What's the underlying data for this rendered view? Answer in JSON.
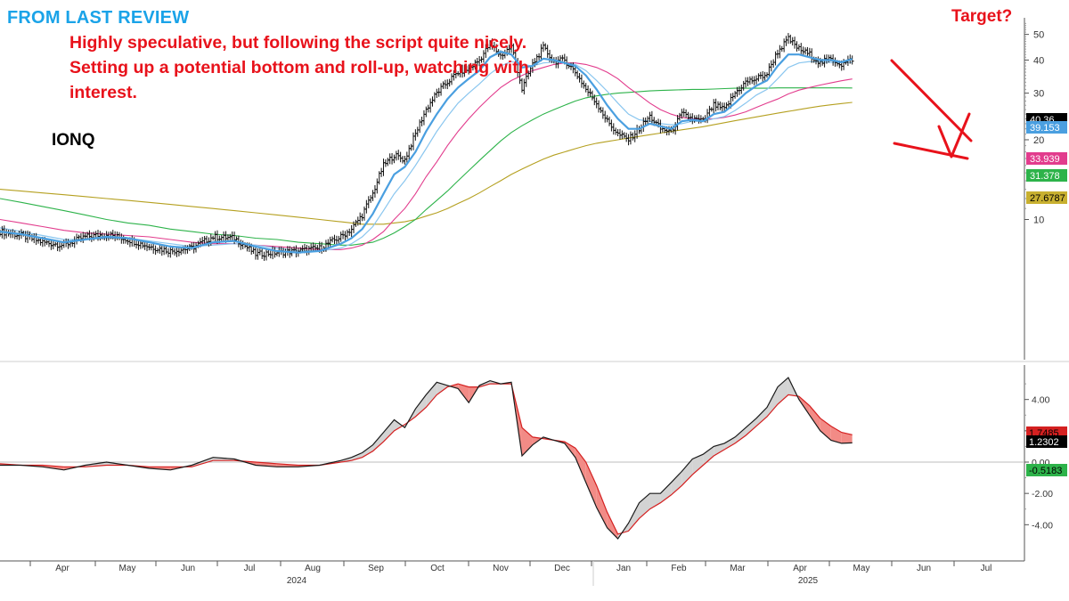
{
  "header": {
    "title": "FROM LAST REVIEW",
    "note": "Highly speculative, but following the script quite nicely. Setting up a potential bottom and roll-up, watching with interest.",
    "ticker": "IONQ",
    "target_label": "Target?"
  },
  "colors": {
    "title": "#1aa3e8",
    "note": "#e8121b",
    "ma_fast": "#4a9fe0",
    "ma_mid": "#8ac6ef",
    "ma_pink": "#e23c8d",
    "ma_green": "#2db34a",
    "ma_olive": "#b5a020",
    "osc_fast": "#1a1a1a",
    "osc_slow": "#d42020",
    "osc_fill_up": "#d3d3d3",
    "osc_fill_down": "#f28b86",
    "annotation": "#e8121b"
  },
  "chart_data": [
    {
      "type": "line",
      "name": "price",
      "title": "IONQ daily price with moving averages",
      "ylim": [
        3,
        56
      ],
      "yticks": [
        "10",
        "20",
        "30",
        "40",
        "50"
      ],
      "months": [
        "Apr",
        "May",
        "Jun",
        "Jul",
        "Aug",
        "Sep",
        "Oct",
        "Nov",
        "Dec",
        "Jan",
        "Feb",
        "Mar",
        "Apr",
        "May",
        "Jun",
        "Jul"
      ],
      "years": [
        "2024",
        "2025"
      ],
      "x": [
        0,
        10,
        20,
        30,
        40,
        50,
        60,
        70,
        80,
        90,
        100,
        110,
        120,
        130,
        140,
        150,
        160,
        165,
        170,
        175,
        180,
        185,
        190,
        195,
        200,
        205,
        210,
        215,
        220,
        225,
        230,
        235,
        240,
        245,
        250,
        255,
        260,
        265,
        270,
        275,
        280,
        285,
        290,
        295,
        300,
        305,
        310,
        315,
        320,
        325,
        330,
        335,
        340,
        345,
        350,
        355,
        360,
        365,
        370,
        375,
        380,
        385,
        390,
        395,
        400
      ],
      "close": [
        9.0,
        8.7,
        8.2,
        8.0,
        8.6,
        8.8,
        8.4,
        7.9,
        7.6,
        7.8,
        8.6,
        8.5,
        7.4,
        7.5,
        7.6,
        7.8,
        8.6,
        9.2,
        10.4,
        12.5,
        16.0,
        17.5,
        16.8,
        21.0,
        26.0,
        30.0,
        33.0,
        36.0,
        37.0,
        40.0,
        46.0,
        41.5,
        45.0,
        31.0,
        38.5,
        44.5,
        39.5,
        40.0,
        36.0,
        31.0,
        27.5,
        23.5,
        21.0,
        20.0,
        22.0,
        24.5,
        22.0,
        21.5,
        25.0,
        24.0,
        23.5,
        27.0,
        26.0,
        30.0,
        33.0,
        34.0,
        35.5,
        43.0,
        48.0,
        44.0,
        42.0,
        39.0,
        40.5,
        38.5,
        40.36
      ],
      "series": [
        {
          "name": "MA fast",
          "values": [
            9.0,
            8.8,
            8.5,
            8.2,
            8.4,
            8.6,
            8.5,
            8.2,
            7.9,
            7.8,
            8.2,
            8.3,
            7.9,
            7.6,
            7.5,
            7.6,
            8.1,
            8.5,
            9.2,
            10.5,
            12.5,
            14.8,
            15.8,
            18.0,
            21.5,
            25.0,
            28.5,
            31.5,
            34.0,
            36.5,
            41.0,
            43.0,
            42.0,
            37.5,
            38.0,
            40.5,
            40.0,
            39.0,
            38.0,
            35.0,
            31.0,
            27.0,
            24.0,
            22.0,
            22.0,
            23.0,
            22.5,
            22.0,
            23.5,
            23.8,
            23.5,
            25.0,
            25.5,
            27.5,
            30.0,
            32.0,
            33.5,
            38.0,
            42.0,
            42.0,
            41.0,
            40.0,
            40.0,
            39.3,
            40.36
          ]
        },
        {
          "name": "MA mid",
          "values": [
            9.3,
            9.0,
            8.7,
            8.4,
            8.4,
            8.5,
            8.5,
            8.3,
            8.1,
            7.9,
            8.0,
            8.1,
            8.0,
            7.8,
            7.6,
            7.6,
            7.8,
            8.1,
            8.6,
            9.4,
            10.8,
            12.5,
            14.0,
            16.0,
            18.5,
            21.5,
            24.5,
            27.5,
            30.0,
            32.5,
            35.5,
            38.0,
            39.5,
            38.5,
            38.0,
            39.0,
            39.3,
            39.0,
            38.5,
            36.5,
            33.5,
            30.5,
            27.5,
            25.0,
            23.8,
            23.5,
            23.0,
            22.8,
            23.0,
            23.5,
            23.5,
            24.0,
            24.5,
            25.8,
            27.5,
            29.5,
            31.0,
            34.0,
            37.5,
            39.0,
            39.5,
            39.3,
            39.2,
            39.1,
            39.153
          ]
        },
        {
          "name": "MA pink",
          "values": [
            10.0,
            9.7,
            9.4,
            9.1,
            8.9,
            8.8,
            8.7,
            8.6,
            8.4,
            8.2,
            8.1,
            8.1,
            8.0,
            7.9,
            7.8,
            7.7,
            7.7,
            7.8,
            8.0,
            8.4,
            9.0,
            10.0,
            11.0,
            12.5,
            14.5,
            16.5,
            19.0,
            21.5,
            24.0,
            26.5,
            29.0,
            31.5,
            33.5,
            35.0,
            36.5,
            37.5,
            38.5,
            39.0,
            39.0,
            38.5,
            37.5,
            36.0,
            34.0,
            31.5,
            29.5,
            27.5,
            26.0,
            25.0,
            24.3,
            24.0,
            24.0,
            24.0,
            24.3,
            24.8,
            25.5,
            26.5,
            27.5,
            28.5,
            29.8,
            30.8,
            31.5,
            32.2,
            32.8,
            33.4,
            33.939
          ]
        },
        {
          "name": "MA green",
          "values": [
            12.0,
            11.6,
            11.2,
            10.8,
            10.4,
            10.0,
            9.7,
            9.5,
            9.2,
            9.0,
            8.8,
            8.7,
            8.5,
            8.4,
            8.2,
            8.1,
            8.0,
            8.0,
            8.1,
            8.2,
            8.5,
            8.9,
            9.4,
            10.0,
            10.9,
            11.8,
            12.8,
            14.0,
            15.3,
            16.7,
            18.2,
            19.8,
            21.3,
            22.6,
            23.8,
            25.0,
            26.0,
            27.0,
            28.0,
            28.8,
            29.3,
            29.7,
            30.0,
            30.2,
            30.4,
            30.6,
            30.7,
            30.8,
            30.9,
            31.0,
            31.0,
            31.1,
            31.2,
            31.3,
            31.3,
            31.3,
            31.3,
            31.4,
            31.4,
            31.4,
            31.4,
            31.4,
            31.4,
            31.4,
            31.378
          ]
        },
        {
          "name": "MA olive",
          "values": [
            13.0,
            12.8,
            12.6,
            12.4,
            12.2,
            12.0,
            11.8,
            11.6,
            11.4,
            11.2,
            11.0,
            10.8,
            10.6,
            10.4,
            10.2,
            10.0,
            9.8,
            9.7,
            9.6,
            9.6,
            9.6,
            9.7,
            9.8,
            10.0,
            10.3,
            10.6,
            11.0,
            11.5,
            12.0,
            12.6,
            13.3,
            14.0,
            14.8,
            15.5,
            16.2,
            16.9,
            17.5,
            18.0,
            18.5,
            19.0,
            19.4,
            19.7,
            20.0,
            20.3,
            20.6,
            20.9,
            21.2,
            21.5,
            21.8,
            22.1,
            22.4,
            22.8,
            23.2,
            23.6,
            24.0,
            24.4,
            24.8,
            25.2,
            25.6,
            26.0,
            26.4,
            26.8,
            27.1,
            27.4,
            27.6787
          ]
        }
      ],
      "value_labels": [
        {
          "text": "40.36",
          "bg": "#000000",
          "fg": "#ffffff",
          "value": 40.36
        },
        {
          "text": "39.153",
          "bg": "#4a9fe0",
          "fg": "#ffffff",
          "value": 39.153
        },
        {
          "text": "33.939",
          "bg": "#e23c8d",
          "fg": "#ffffff",
          "value": 33.939
        },
        {
          "text": "31.378",
          "bg": "#2db34a",
          "fg": "#ffffff",
          "value": 31.378
        },
        {
          "text": "27.6787",
          "bg": "#c8b030",
          "fg": "#000000",
          "value": 27.6787
        }
      ]
    },
    {
      "type": "area",
      "name": "oscillator",
      "ylim": [
        -6.2,
        6.2
      ],
      "yticks": [
        "4.00",
        "2.00",
        "0.00",
        "-2.00",
        "-4.00"
      ],
      "ytick_values": [
        4,
        2,
        0,
        -2,
        -4
      ],
      "x": [
        0,
        10,
        20,
        30,
        40,
        50,
        60,
        70,
        80,
        90,
        100,
        110,
        120,
        130,
        140,
        150,
        160,
        165,
        170,
        175,
        180,
        185,
        190,
        195,
        200,
        205,
        210,
        215,
        220,
        225,
        230,
        235,
        240,
        245,
        250,
        255,
        260,
        265,
        270,
        275,
        280,
        285,
        290,
        295,
        300,
        305,
        310,
        315,
        320,
        325,
        330,
        335,
        340,
        345,
        350,
        355,
        360,
        365,
        370,
        375,
        380,
        385,
        390,
        395,
        400
      ],
      "series": [
        {
          "name": "fast",
          "values": [
            -0.2,
            -0.2,
            -0.3,
            -0.5,
            -0.2,
            0.0,
            -0.2,
            -0.4,
            -0.5,
            -0.2,
            0.3,
            0.2,
            -0.2,
            -0.3,
            -0.3,
            -0.2,
            0.1,
            0.3,
            0.6,
            1.1,
            1.9,
            2.7,
            2.2,
            3.4,
            4.3,
            5.1,
            4.9,
            4.7,
            3.8,
            4.9,
            5.2,
            5.0,
            5.1,
            0.4,
            1.1,
            1.6,
            1.4,
            1.2,
            0.3,
            -1.3,
            -2.9,
            -4.2,
            -4.9,
            -3.9,
            -2.6,
            -2.0,
            -2.0,
            -1.3,
            -0.6,
            0.2,
            0.5,
            1.0,
            1.2,
            1.6,
            2.2,
            2.8,
            3.5,
            4.8,
            5.4,
            4.0,
            3.0,
            2.0,
            1.4,
            1.2,
            1.23
          ]
        },
        {
          "name": "slow",
          "values": [
            -0.1,
            -0.2,
            -0.2,
            -0.3,
            -0.3,
            -0.2,
            -0.2,
            -0.3,
            -0.3,
            -0.3,
            0.1,
            0.1,
            0.0,
            -0.1,
            -0.2,
            -0.2,
            0.0,
            0.1,
            0.3,
            0.7,
            1.3,
            2.0,
            2.4,
            2.9,
            3.5,
            4.3,
            4.8,
            5.0,
            4.8,
            4.8,
            5.0,
            5.0,
            5.0,
            2.2,
            1.6,
            1.5,
            1.4,
            1.3,
            0.9,
            0.0,
            -1.5,
            -3.2,
            -4.6,
            -4.4,
            -3.6,
            -3.0,
            -2.6,
            -2.1,
            -1.5,
            -0.8,
            -0.2,
            0.4,
            0.8,
            1.2,
            1.7,
            2.3,
            2.9,
            3.7,
            4.3,
            4.2,
            3.6,
            2.8,
            2.3,
            1.9,
            1.7485
          ]
        }
      ],
      "value_labels": [
        {
          "text": "1.7485",
          "bg": "#d42020",
          "fg": "#000000",
          "value": 1.7485
        },
        {
          "text": "1.2302",
          "bg": "#000000",
          "fg": "#ffffff",
          "value": 1.2302
        },
        {
          "text": "-0.5183",
          "bg": "#2db34a",
          "fg": "#000000",
          "value": -0.5183
        }
      ]
    }
  ]
}
